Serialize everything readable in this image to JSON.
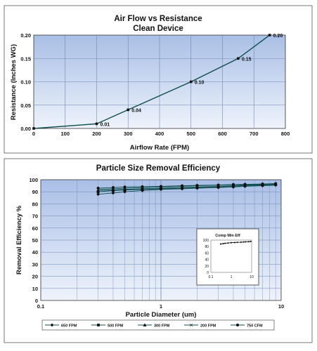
{
  "chart_data": [
    {
      "type": "line",
      "title": "Air Flow vs Resistance",
      "subtitle": "Clean Device",
      "xlabel": "Airflow Rate (FPM)",
      "ylabel": "Resistance (Inches WG)",
      "xlim": [
        0,
        800
      ],
      "ylim": [
        0,
        0.2
      ],
      "xticks": [
        "0",
        "100",
        "200",
        "300",
        "400",
        "500",
        "600",
        "700",
        "800"
      ],
      "yticks": [
        "0.00",
        "0.05",
        "0.10",
        "0.15",
        "0.20"
      ],
      "grid": true,
      "series": [
        {
          "x": [
            0,
            200,
            300,
            500,
            650,
            750
          ],
          "y": [
            0,
            0.01,
            0.04,
            0.1,
            0.15,
            0.2
          ],
          "labels": [
            "",
            "0.01",
            "0.04",
            "0.10",
            "0.15",
            "0.20"
          ]
        }
      ]
    },
    {
      "type": "line",
      "title": "Particle Size Removal Efficiency",
      "xlabel": "Particle Diameter (um)",
      "ylabel": "Removal Efficiency %",
      "xscale": "log",
      "xlim": [
        0.1,
        10
      ],
      "ylim": [
        0,
        100
      ],
      "xticks": [
        "0.1",
        "1",
        "10"
      ],
      "yticks": [
        "0",
        "10",
        "20",
        "30",
        "40",
        "50",
        "60",
        "70",
        "80",
        "90",
        "100"
      ],
      "grid": true,
      "legend_position": "bottom",
      "series": [
        {
          "name": "650 FPM",
          "x": [
            0.3,
            0.4,
            0.5,
            0.7,
            1.0,
            1.5,
            2.0,
            3.0,
            4.0,
            5.0,
            7.0,
            9.0
          ],
          "y": [
            88,
            89,
            90,
            91,
            92,
            92.5,
            93,
            93.5,
            94,
            94.5,
            95,
            95.5
          ]
        },
        {
          "name": "500 FPM",
          "x": [
            0.3,
            0.4,
            0.5,
            0.7,
            1.0,
            1.5,
            2.0,
            3.0,
            4.0,
            5.0,
            7.0,
            9.0
          ],
          "y": [
            90,
            91,
            91.5,
            92,
            92.5,
            93,
            93.5,
            94,
            94.5,
            95,
            95.5,
            96
          ]
        },
        {
          "name": "300 FPM",
          "x": [
            0.3,
            0.4,
            0.5,
            0.7,
            1.0,
            1.5,
            2.0,
            3.0,
            4.0,
            5.0,
            7.0,
            9.0
          ],
          "y": [
            91,
            91.5,
            92,
            92.5,
            93,
            93.5,
            94,
            94.5,
            95,
            95.5,
            96,
            96.5
          ]
        },
        {
          "name": "200 FPM",
          "x": [
            0.3,
            0.4,
            0.5,
            0.7,
            1.0,
            1.5,
            2.0,
            3.0,
            4.0,
            5.0,
            7.0,
            9.0
          ],
          "y": [
            92,
            92.5,
            93,
            93.5,
            94,
            94.5,
            95,
            95.5,
            95.8,
            96,
            96.3,
            96.5
          ]
        },
        {
          "name": "750 CFM",
          "x": [
            0.3,
            0.4,
            0.5,
            0.7,
            1.0,
            1.5,
            2.0,
            3.0,
            4.0,
            5.0,
            7.0,
            9.0
          ],
          "y": [
            93,
            93.5,
            94,
            94.2,
            94.5,
            95,
            95.3,
            95.6,
            96,
            96.2,
            96.5,
            96.8
          ]
        }
      ],
      "inset": {
        "title": "Comp Min Eff",
        "xscale": "log",
        "xlim": [
          0.1,
          10
        ],
        "ylim": [
          0,
          100
        ],
        "xticks": [
          "0.1",
          "1",
          "10"
        ],
        "yticks": [
          "0",
          "20",
          "40",
          "60",
          "80",
          "100"
        ],
        "series": [
          {
            "x": [
              0.3,
              0.4,
              0.5,
              0.7,
              1.0,
              1.5,
              2.0,
              3.0,
              4.0,
              5.0,
              7.0,
              9.0
            ],
            "y": [
              88,
              89,
              90,
              91,
              92,
              92.5,
              93,
              93.5,
              94,
              94.5,
              95,
              95.5
            ]
          }
        ]
      }
    }
  ],
  "colors": {
    "plot_gradient_top": "#a9bfe6",
    "plot_gradient_bottom": "#eef3fb",
    "line": "#0d4d4d",
    "grid": "#6e87b3"
  }
}
